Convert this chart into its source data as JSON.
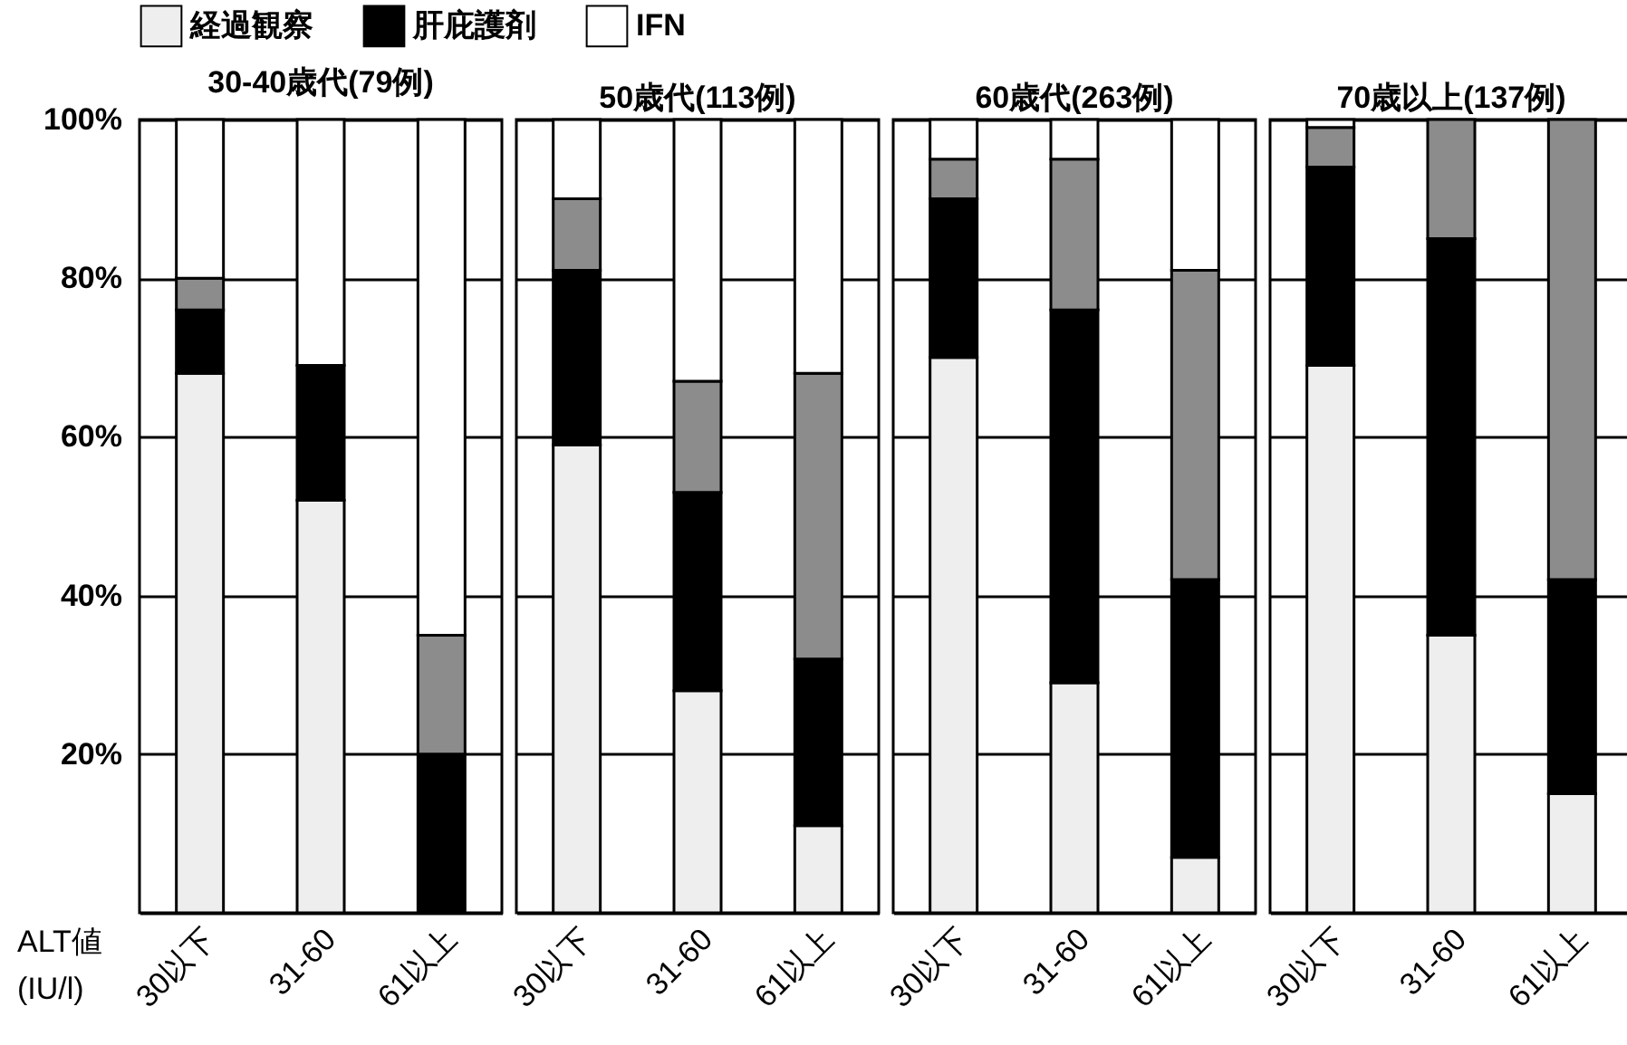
{
  "chart_data": [
    {
      "type": "bar",
      "stacked": true,
      "title": "30-40歳代(79例)",
      "xlabel": "ALT値 (IU/l)",
      "categories": [
        "30以下",
        "31-60",
        "61以上"
      ],
      "ylim": [
        0,
        100
      ],
      "yticks": [
        {
          "value": 20,
          "label": "20%"
        },
        {
          "value": 40,
          "label": "40%"
        },
        {
          "value": 60,
          "label": "60%"
        },
        {
          "value": 80,
          "label": "80%"
        },
        {
          "value": 100,
          "label": "100%"
        }
      ],
      "grid": "y",
      "legend": "top",
      "series": [
        {
          "name": "経過観察",
          "color": "#eeeeee",
          "values": [
            68,
            52,
            0
          ]
        },
        {
          "name": "肝庇護剤",
          "color": "#000000",
          "values": [
            8,
            17,
            20
          ]
        },
        {
          "color": "#8c8c8c",
          "values": [
            4,
            0,
            15
          ]
        },
        {
          "name": "IFN",
          "color": "#ffffff",
          "values": [
            20,
            31,
            65
          ]
        }
      ]
    },
    {
      "type": "bar",
      "stacked": true,
      "title": "50歳代(113例)",
      "categories": [
        "30以下",
        "31-60",
        "61以上"
      ],
      "ylim": [
        0,
        100
      ],
      "yticks": [
        20,
        40,
        60,
        80,
        100
      ],
      "grid": "y",
      "tick_labels": "x",
      "series": [
        {
          "color": "#eeeeee",
          "values": [
            59,
            28,
            11
          ]
        },
        {
          "color": "#000000",
          "values": [
            22,
            25,
            21
          ]
        },
        {
          "color": "#8c8c8c",
          "values": [
            9,
            14,
            36
          ]
        },
        {
          "color": "#ffffff",
          "values": [
            10,
            33,
            32
          ]
        }
      ]
    },
    {
      "type": "bar",
      "stacked": true,
      "title": "60歳代(263例)",
      "categories": [
        "30以下",
        "31-60",
        "61以上"
      ],
      "ylim": [
        0,
        100
      ],
      "yticks": [
        20,
        40,
        60,
        80,
        100
      ],
      "grid": "y",
      "tick_labels": "x",
      "series": [
        {
          "color": "#eeeeee",
          "values": [
            70,
            29,
            7
          ]
        },
        {
          "color": "#000000",
          "values": [
            20,
            47,
            35
          ]
        },
        {
          "color": "#8c8c8c",
          "values": [
            5,
            19,
            39
          ]
        },
        {
          "color": "#ffffff",
          "values": [
            5,
            5,
            19
          ]
        }
      ]
    },
    {
      "type": "bar",
      "stacked": true,
      "title": "70歳以上(137例)",
      "categories": [
        "30以下",
        "31-60",
        "61以上"
      ],
      "ylim": [
        0,
        100
      ],
      "yticks": [
        20,
        40,
        60,
        80,
        100
      ],
      "grid": "y",
      "tick_labels": "x",
      "series": [
        {
          "color": "#eeeeee",
          "values": [
            69,
            35,
            15
          ]
        },
        {
          "color": "#000000",
          "values": [
            25,
            50,
            27
          ]
        },
        {
          "color": "#8c8c8c",
          "values": [
            5,
            15,
            58
          ]
        },
        {
          "color": "#ffffff",
          "values": [
            1,
            0,
            0
          ]
        }
      ]
    }
  ]
}
